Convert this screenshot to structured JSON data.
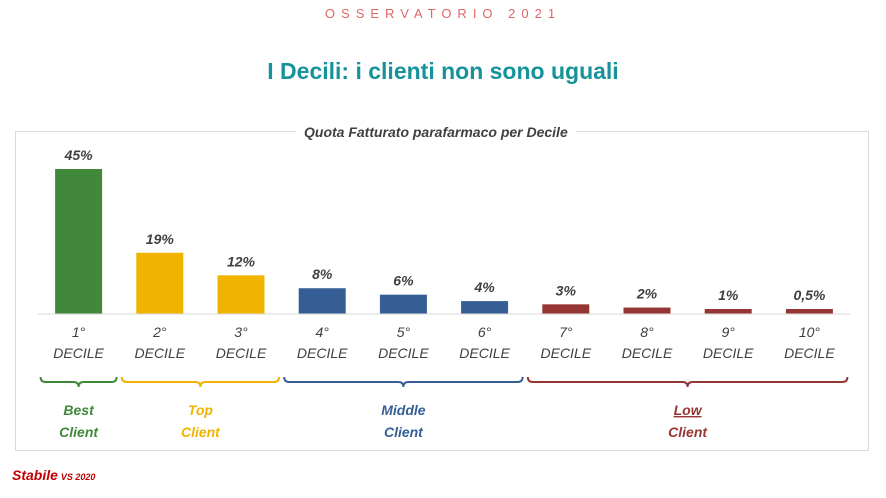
{
  "header": {
    "label": "OSSERVATORIO 2021",
    "title": "I Decili: i clienti non sono uguali"
  },
  "chart_data": {
    "type": "bar",
    "title": "Quota Fatturato parafarmaco per Decile",
    "categories": [
      [
        "1°",
        "DECILE"
      ],
      [
        "2°",
        "DECILE"
      ],
      [
        "3°",
        "DECILE"
      ],
      [
        "4°",
        "DECILE"
      ],
      [
        "5°",
        "DECILE"
      ],
      [
        "6°",
        "DECILE"
      ],
      [
        "7°",
        "DECILE"
      ],
      [
        "8°",
        "DECILE"
      ],
      [
        "9°",
        "DECILE"
      ],
      [
        "10°",
        "DECILE"
      ]
    ],
    "values": [
      45,
      19,
      12,
      8,
      6,
      4,
      3,
      2,
      1,
      0.5
    ],
    "data_labels": [
      "45%",
      "19%",
      "12%",
      "8%",
      "6%",
      "4%",
      "3%",
      "2%",
      "1%",
      "0,5%"
    ],
    "bar_colors": [
      "#41883a",
      "#f0b400",
      "#f0b400",
      "#355f94",
      "#355f94",
      "#355f94",
      "#963634",
      "#963634",
      "#963634",
      "#963634"
    ],
    "ylim": [
      0,
      45
    ],
    "groups": [
      {
        "label": [
          "Best",
          "Client"
        ],
        "from": 0,
        "to": 0,
        "color": "#41883a",
        "underline": false
      },
      {
        "label": [
          "Top",
          "Client"
        ],
        "from": 1,
        "to": 2,
        "color": "#f0b400",
        "underline": false
      },
      {
        "label": [
          "Middle",
          "Client"
        ],
        "from": 3,
        "to": 5,
        "color": "#355f94",
        "underline": false
      },
      {
        "label": [
          "Low",
          "Client"
        ],
        "from": 6,
        "to": 9,
        "color": "#963634",
        "underline": true
      }
    ]
  },
  "footnote": {
    "main": "Stabile",
    "small": "VS 2020"
  }
}
